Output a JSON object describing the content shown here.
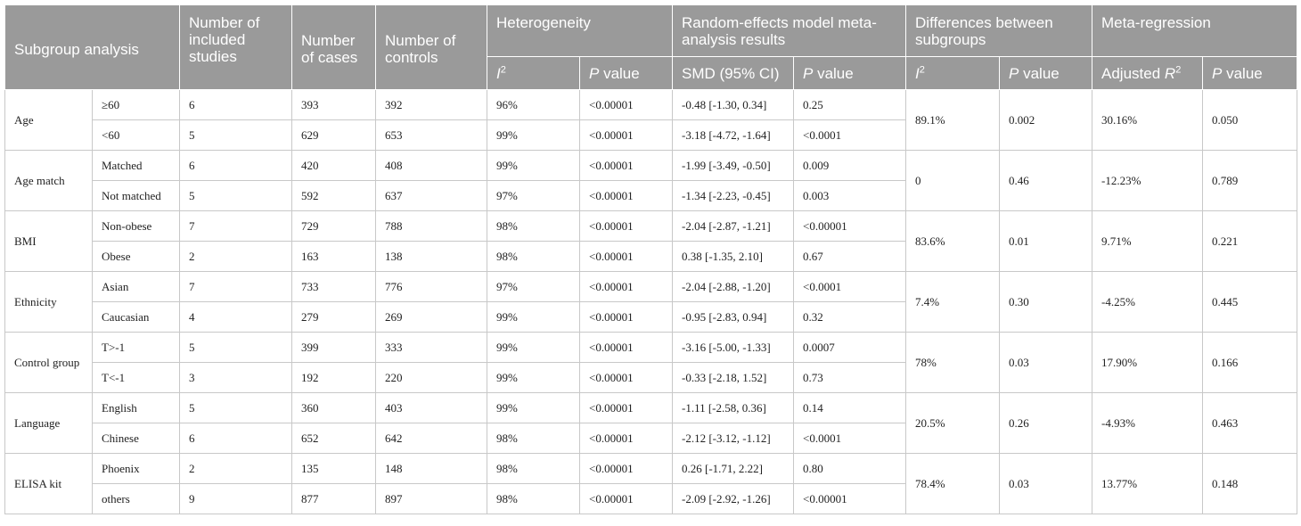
{
  "header": {
    "subgroup_analysis": "Subgroup analysis",
    "num_studies": "Number of included studies",
    "num_cases": "Number of cases",
    "num_controls": "Number of controls",
    "heterogeneity": "Heterogeneity",
    "random_effects": "Random-effects model meta-analysis results",
    "differences": "Differences between subgroups",
    "meta_regression": "Meta-regression",
    "i2_letter": "I",
    "i2_exp": "2",
    "p_italic": "P",
    "p_rest": " value",
    "smd": "SMD (95% CI)",
    "adj_r2_text": "Adjusted ",
    "adj_r2_letter": "R",
    "adj_r2_exp": "2"
  },
  "groups": [
    {
      "name": "Age",
      "diff_i2": "89.1%",
      "diff_p": "0.002",
      "adj_r2": "30.16%",
      "reg_p": "0.050",
      "rows": [
        {
          "sub": "≥60",
          "studies": "6",
          "cases": "393",
          "controls": "392",
          "i2": "96%",
          "p": "<0.00001",
          "smd": "-0.48 [-1.30, 0.34]",
          "smd_p": "0.25"
        },
        {
          "sub": "<60",
          "studies": "5",
          "cases": "629",
          "controls": "653",
          "i2": "99%",
          "p": "<0.00001",
          "smd": "-3.18 [-4.72, -1.64]",
          "smd_p": "<0.0001"
        }
      ]
    },
    {
      "name": "Age match",
      "diff_i2": "0",
      "diff_p": "0.46",
      "adj_r2": "-12.23%",
      "reg_p": "0.789",
      "rows": [
        {
          "sub": "Matched",
          "studies": "6",
          "cases": "420",
          "controls": "408",
          "i2": "99%",
          "p": "<0.00001",
          "smd": "-1.99 [-3.49, -0.50]",
          "smd_p": "0.009"
        },
        {
          "sub": "Not matched",
          "studies": "5",
          "cases": "592",
          "controls": "637",
          "i2": "97%",
          "p": "<0.00001",
          "smd": "-1.34 [-2.23, -0.45]",
          "smd_p": "0.003"
        }
      ]
    },
    {
      "name": "BMI",
      "diff_i2": "83.6%",
      "diff_p": "0.01",
      "adj_r2": "9.71%",
      "reg_p": "0.221",
      "rows": [
        {
          "sub": "Non-obese",
          "studies": "7",
          "cases": "729",
          "controls": "788",
          "i2": "98%",
          "p": "<0.00001",
          "smd": "-2.04 [-2.87, -1.21]",
          "smd_p": "<0.00001"
        },
        {
          "sub": "Obese",
          "studies": "2",
          "cases": "163",
          "controls": "138",
          "i2": "98%",
          "p": "<0.00001",
          "smd": "0.38 [-1.35, 2.10]",
          "smd_p": "0.67"
        }
      ]
    },
    {
      "name": "Ethnicity",
      "diff_i2": "7.4%",
      "diff_p": "0.30",
      "adj_r2": "-4.25%",
      "reg_p": "0.445",
      "rows": [
        {
          "sub": "Asian",
          "studies": "7",
          "cases": "733",
          "controls": "776",
          "i2": "97%",
          "p": "<0.00001",
          "smd": "-2.04 [-2.88, -1.20]",
          "smd_p": "<0.0001"
        },
        {
          "sub": "Caucasian",
          "studies": "4",
          "cases": "279",
          "controls": "269",
          "i2": "99%",
          "p": "<0.00001",
          "smd": "-0.95 [-2.83, 0.94]",
          "smd_p": "0.32"
        }
      ]
    },
    {
      "name": "Control group",
      "diff_i2": "78%",
      "diff_p": "0.03",
      "adj_r2": "17.90%",
      "reg_p": "0.166",
      "rows": [
        {
          "sub": "T>-1",
          "studies": "5",
          "cases": "399",
          "controls": "333",
          "i2": "99%",
          "p": "<0.00001",
          "smd": "-3.16 [-5.00, -1.33]",
          "smd_p": "0.0007"
        },
        {
          "sub": "T<-1",
          "studies": "3",
          "cases": "192",
          "controls": "220",
          "i2": "99%",
          "p": "<0.00001",
          "smd": "-0.33 [-2.18, 1.52]",
          "smd_p": "0.73"
        }
      ]
    },
    {
      "name": "Language",
      "diff_i2": "20.5%",
      "diff_p": "0.26",
      "adj_r2": "-4.93%",
      "reg_p": "0.463",
      "rows": [
        {
          "sub": "English",
          "studies": "5",
          "cases": "360",
          "controls": "403",
          "i2": "99%",
          "p": "<0.00001",
          "smd": "-1.11 [-2.58, 0.36]",
          "smd_p": "0.14"
        },
        {
          "sub": "Chinese",
          "studies": "6",
          "cases": "652",
          "controls": "642",
          "i2": "98%",
          "p": "<0.00001",
          "smd": "-2.12 [-3.12, -1.12]",
          "smd_p": "<0.0001"
        }
      ]
    },
    {
      "name": "ELISA kit",
      "diff_i2": "78.4%",
      "diff_p": "0.03",
      "adj_r2": "13.77%",
      "reg_p": "0.148",
      "rows": [
        {
          "sub": "Phoenix",
          "studies": "2",
          "cases": "135",
          "controls": "148",
          "i2": "98%",
          "p": "<0.00001",
          "smd": "0.26 [-1.71, 2.22]",
          "smd_p": "0.80"
        },
        {
          "sub": "others",
          "studies": "9",
          "cases": "877",
          "controls": "897",
          "i2": "98%",
          "p": "<0.00001",
          "smd": "-2.09 [-2.92, -1.26]",
          "smd_p": "<0.00001"
        }
      ]
    }
  ]
}
